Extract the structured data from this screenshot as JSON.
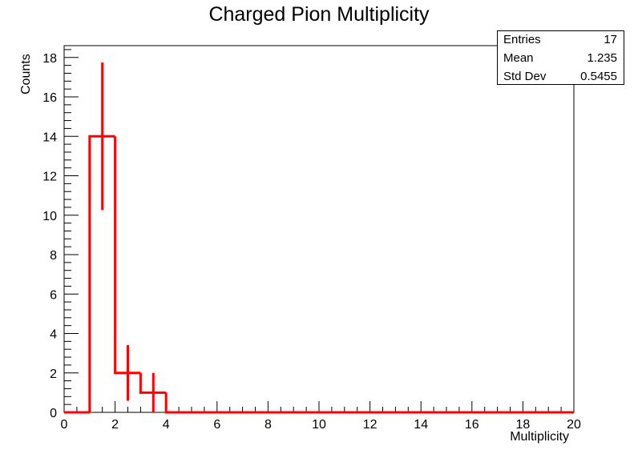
{
  "chart_data": {
    "type": "bar",
    "style": "step-histogram-with-error-bars",
    "title": "Charged Pion Multiplicity",
    "xlabel": "Multiplicity",
    "ylabel": "Counts",
    "xlim": [
      0,
      20
    ],
    "ylim": [
      0,
      18.6
    ],
    "x_ticks": [
      "0",
      "2",
      "4",
      "6",
      "8",
      "10",
      "12",
      "14",
      "16",
      "18",
      "20"
    ],
    "y_ticks": [
      "0",
      "2",
      "4",
      "6",
      "8",
      "10",
      "12",
      "14",
      "16",
      "18"
    ],
    "bin_edges": [
      0,
      1,
      2,
      3,
      4,
      5,
      6,
      7,
      8,
      9,
      10,
      11,
      12,
      13,
      14,
      15,
      16,
      17,
      18,
      19,
      20
    ],
    "values": [
      0,
      14,
      2,
      1,
      0,
      0,
      0,
      0,
      0,
      0,
      0,
      0,
      0,
      0,
      0,
      0,
      0,
      0,
      0,
      0
    ],
    "errors": [
      0,
      3.74,
      1.41,
      1.0,
      0,
      0,
      0,
      0,
      0,
      0,
      0,
      0,
      0,
      0,
      0,
      0,
      0,
      0,
      0,
      0
    ],
    "line_color": "#ff0000",
    "grid": false,
    "stats_box": {
      "placement": "top-right",
      "rows": [
        {
          "label": "Entries",
          "value": "17"
        },
        {
          "label": "Mean",
          "value": "1.235"
        },
        {
          "label": "Std Dev",
          "value": "0.5455"
        }
      ]
    }
  }
}
